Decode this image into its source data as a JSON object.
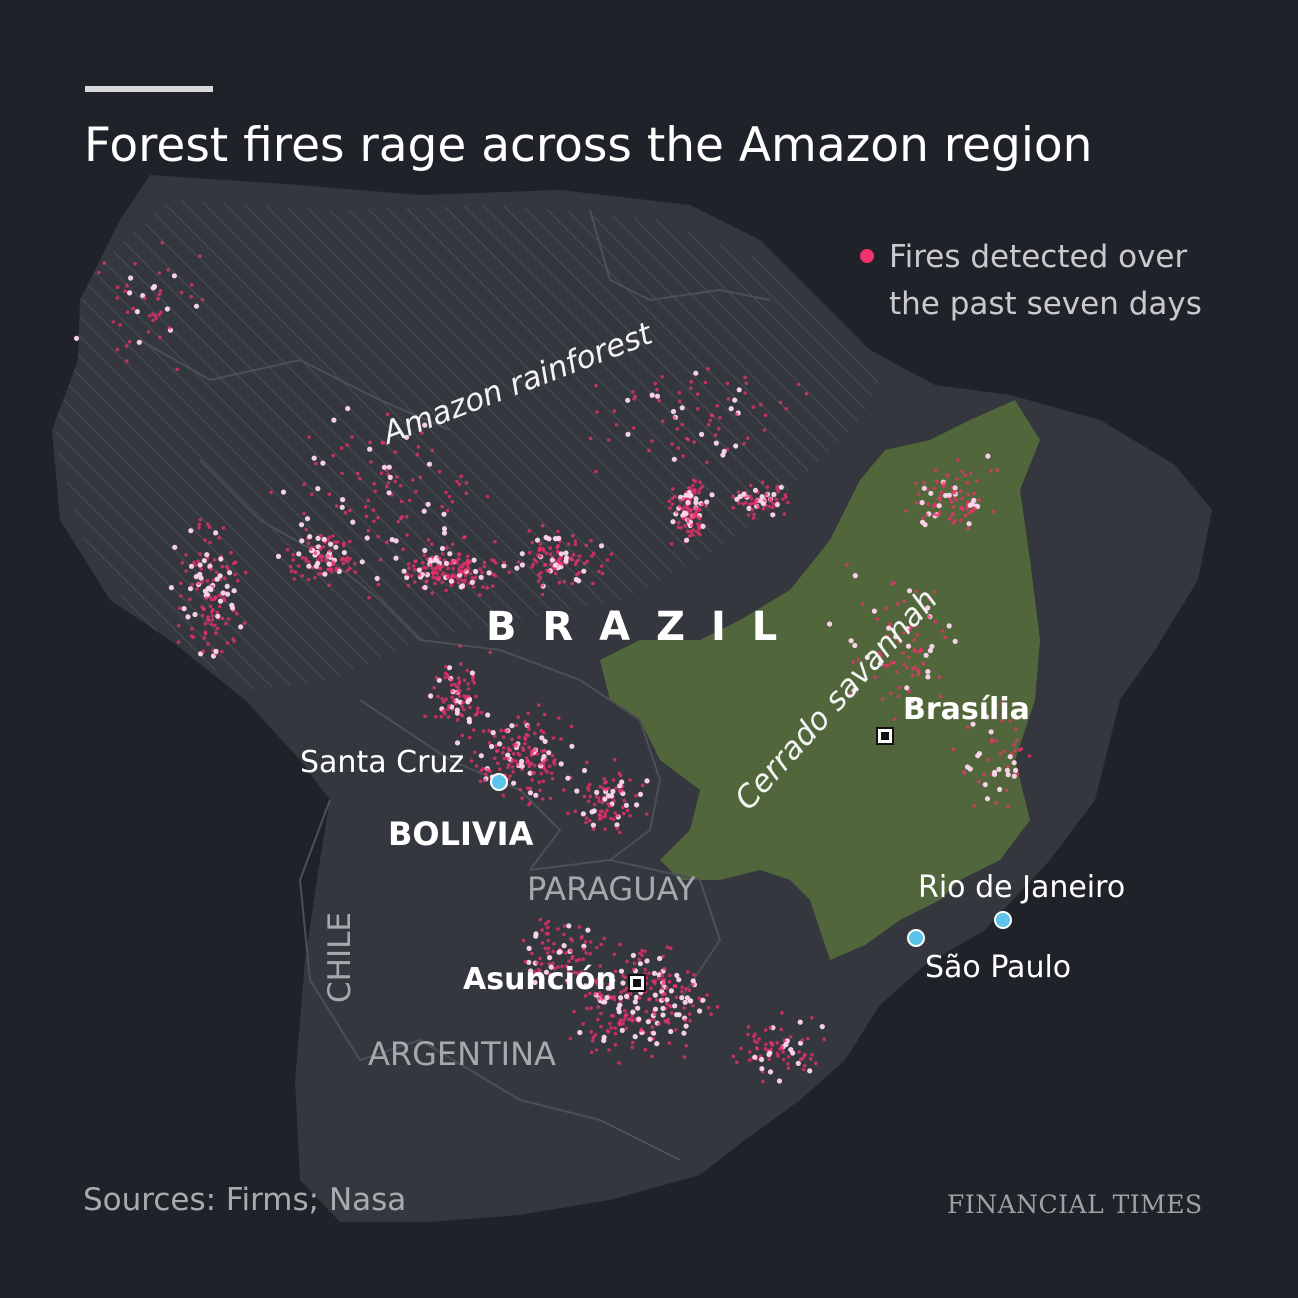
{
  "title": "Forest fires rage across the Amazon region",
  "legend": {
    "line1": "Fires detected over",
    "line2": "the past seven days",
    "marker_color": "#f0326e"
  },
  "regions": {
    "amazon": "Amazon rainforest",
    "cerrado": "Cerrado savannah"
  },
  "countries": {
    "brazil": "B R A Z I L",
    "bolivia": "BOLIVIA",
    "paraguay": "PARAGUAY",
    "chile": "CHILE",
    "argentina": "ARGENTINA"
  },
  "cities": {
    "santa_cruz": "Santa Cruz",
    "brasilia": "Brasília",
    "asuncion": "Asunción",
    "rio": "Rio de Janeiro",
    "sao_paulo": "São Paulo"
  },
  "source": "Sources: Firms; Nasa",
  "brand": "FINANCIAL TIMES",
  "colors": {
    "background": "#1f2228",
    "land": "#34373d",
    "cerrado": "#52663b",
    "fire": "#f0326e",
    "fire_hot": "#ffd8ef",
    "city": "#5cc4eb"
  }
}
